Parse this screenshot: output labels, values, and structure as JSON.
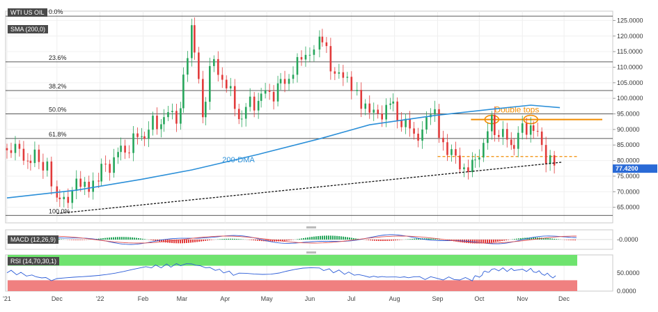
{
  "header": {
    "symbol": "WTI US OIL",
    "sma_label": "SMA (200,0)"
  },
  "price_tag": {
    "value": "77.4200",
    "price": 77.42,
    "color": "#2a6ad6"
  },
  "annotations": {
    "dma": "200-DMA",
    "double_tops": "Double tops"
  },
  "fib_levels": [
    {
      "label": "0.0%",
      "price": 126.4
    },
    {
      "label": "23.6%",
      "price": 111.7
    },
    {
      "label": "38.2%",
      "price": 102.5
    },
    {
      "label": "50.0%",
      "price": 95.0
    },
    {
      "label": "61.8%",
      "price": 87.1
    },
    {
      "label": "100.0%",
      "price": 62.4
    }
  ],
  "indicators": {
    "macd": {
      "label": "MACD (12,26,9)",
      "axis_tick": "-0.0000"
    },
    "rsi": {
      "label": "RSI (14,70,30,1)",
      "axis_ticks": [
        "50.0000",
        "0.0000"
      ]
    }
  },
  "colors": {
    "bull": "#26a65b",
    "bear": "#e23a3a",
    "sma": "#2b8fd8",
    "fib": "#222222",
    "double_tops": "#f28c00",
    "rsi_overbought": "#6ee36e",
    "rsi_oversold": "#f08080"
  },
  "chart_data": {
    "type": "line",
    "title": "WTI US OIL",
    "x_tick_labels": [
      "'21",
      "Dec",
      "'22",
      "Feb",
      "Mar",
      "Apr",
      "May",
      "Jun",
      "Jul",
      "Aug",
      "Sep",
      "Oct",
      "Nov",
      "Dec"
    ],
    "price_axis_ticks": [
      "125.0000",
      "120.0000",
      "115.0000",
      "110.0000",
      "105.0000",
      "100.0000",
      "95.0000",
      "90.0000",
      "85.0000",
      "80.0000",
      "75.0000",
      "70.0000",
      "65.0000"
    ],
    "ylim": [
      60,
      128
    ],
    "price_closes": [
      {
        "x": "2021-10-26",
        "y": 84
      },
      {
        "x": "2021-11-10",
        "y": 81
      },
      {
        "x": "2021-11-24",
        "y": 79
      },
      {
        "x": "2021-12-01",
        "y": 66
      },
      {
        "x": "2021-12-15",
        "y": 71
      },
      {
        "x": "2021-12-31",
        "y": 75
      },
      {
        "x": "2022-01-14",
        "y": 82
      },
      {
        "x": "2022-01-31",
        "y": 88
      },
      {
        "x": "2022-02-14",
        "y": 93
      },
      {
        "x": "2022-02-28",
        "y": 96
      },
      {
        "x": "2022-03-08",
        "y": 124
      },
      {
        "x": "2022-03-16",
        "y": 95
      },
      {
        "x": "2022-03-24",
        "y": 113
      },
      {
        "x": "2022-04-11",
        "y": 94
      },
      {
        "x": "2022-04-25",
        "y": 100
      },
      {
        "x": "2022-05-09",
        "y": 103
      },
      {
        "x": "2022-05-23",
        "y": 110
      },
      {
        "x": "2022-06-08",
        "y": 120
      },
      {
        "x": "2022-06-22",
        "y": 106
      },
      {
        "x": "2022-07-05",
        "y": 103
      },
      {
        "x": "2022-07-14",
        "y": 94
      },
      {
        "x": "2022-07-29",
        "y": 98
      },
      {
        "x": "2022-08-15",
        "y": 88
      },
      {
        "x": "2022-08-30",
        "y": 95
      },
      {
        "x": "2022-09-08",
        "y": 82
      },
      {
        "x": "2022-09-26",
        "y": 77
      },
      {
        "x": "2022-10-10",
        "y": 92
      },
      {
        "x": "2022-10-24",
        "y": 85
      },
      {
        "x": "2022-11-07",
        "y": 92
      },
      {
        "x": "2022-11-21",
        "y": 80
      },
      {
        "x": "2022-11-28",
        "y": 77.42
      }
    ],
    "sma_200": [
      {
        "x": "2021-10-26",
        "y": 68
      },
      {
        "x": "2021-12-15",
        "y": 70.5
      },
      {
        "x": "2022-01-31",
        "y": 74
      },
      {
        "x": "2022-03-08",
        "y": 77
      },
      {
        "x": "2022-04-25",
        "y": 82
      },
      {
        "x": "2022-06-08",
        "y": 87
      },
      {
        "x": "2022-07-14",
        "y": 91.5
      },
      {
        "x": "2022-08-30",
        "y": 94.5
      },
      {
        "x": "2022-10-10",
        "y": 96.5
      },
      {
        "x": "2022-11-07",
        "y": 97.8
      },
      {
        "x": "2022-11-28",
        "y": 97
      }
    ],
    "support_line": [
      {
        "x": "2021-12-01",
        "y": 63
      },
      {
        "x": "2022-11-30",
        "y": 79.5
      }
    ],
    "support_horizontal": 81.3,
    "double_tops_resistance": 93.2,
    "double_tops_x": [
      "2022-10-10",
      "2022-11-07"
    ],
    "macd_range": [
      -2,
      2
    ],
    "rsi_range": [
      0,
      100
    ],
    "rsi_overbought": 70,
    "rsi_oversold": 30,
    "rsi": [
      {
        "x": "2021-10-26",
        "y": 55
      },
      {
        "x": "2021-12-01",
        "y": 30
      },
      {
        "x": "2022-01-31",
        "y": 65
      },
      {
        "x": "2022-03-08",
        "y": 75
      },
      {
        "x": "2022-04-11",
        "y": 45
      },
      {
        "x": "2022-06-08",
        "y": 62
      },
      {
        "x": "2022-07-14",
        "y": 40
      },
      {
        "x": "2022-08-15",
        "y": 38
      },
      {
        "x": "2022-09-26",
        "y": 32
      },
      {
        "x": "2022-10-10",
        "y": 60
      },
      {
        "x": "2022-11-07",
        "y": 58
      },
      {
        "x": "2022-11-28",
        "y": 36
      }
    ]
  }
}
